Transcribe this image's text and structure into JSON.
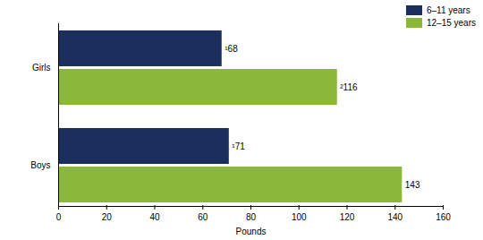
{
  "chart_data": {
    "type": "bar",
    "orientation": "horizontal",
    "categories": [
      "Girls",
      "Boys"
    ],
    "series": [
      {
        "name": "6–11 years",
        "color": "#1b2f5e",
        "values": [
          68,
          71
        ],
        "value_labels": [
          "¹68",
          "¹71"
        ]
      },
      {
        "name": "12–15 years",
        "color": "#8cb83a",
        "values": [
          116,
          143
        ],
        "value_labels": [
          "²116",
          "143"
        ]
      }
    ],
    "x_label": "Pounds",
    "xlim": [
      0,
      160
    ],
    "xticks": [
      0,
      20,
      40,
      60,
      80,
      100,
      120,
      140,
      160
    ],
    "grid": false,
    "legend": "top-right",
    "data_labels": true
  }
}
